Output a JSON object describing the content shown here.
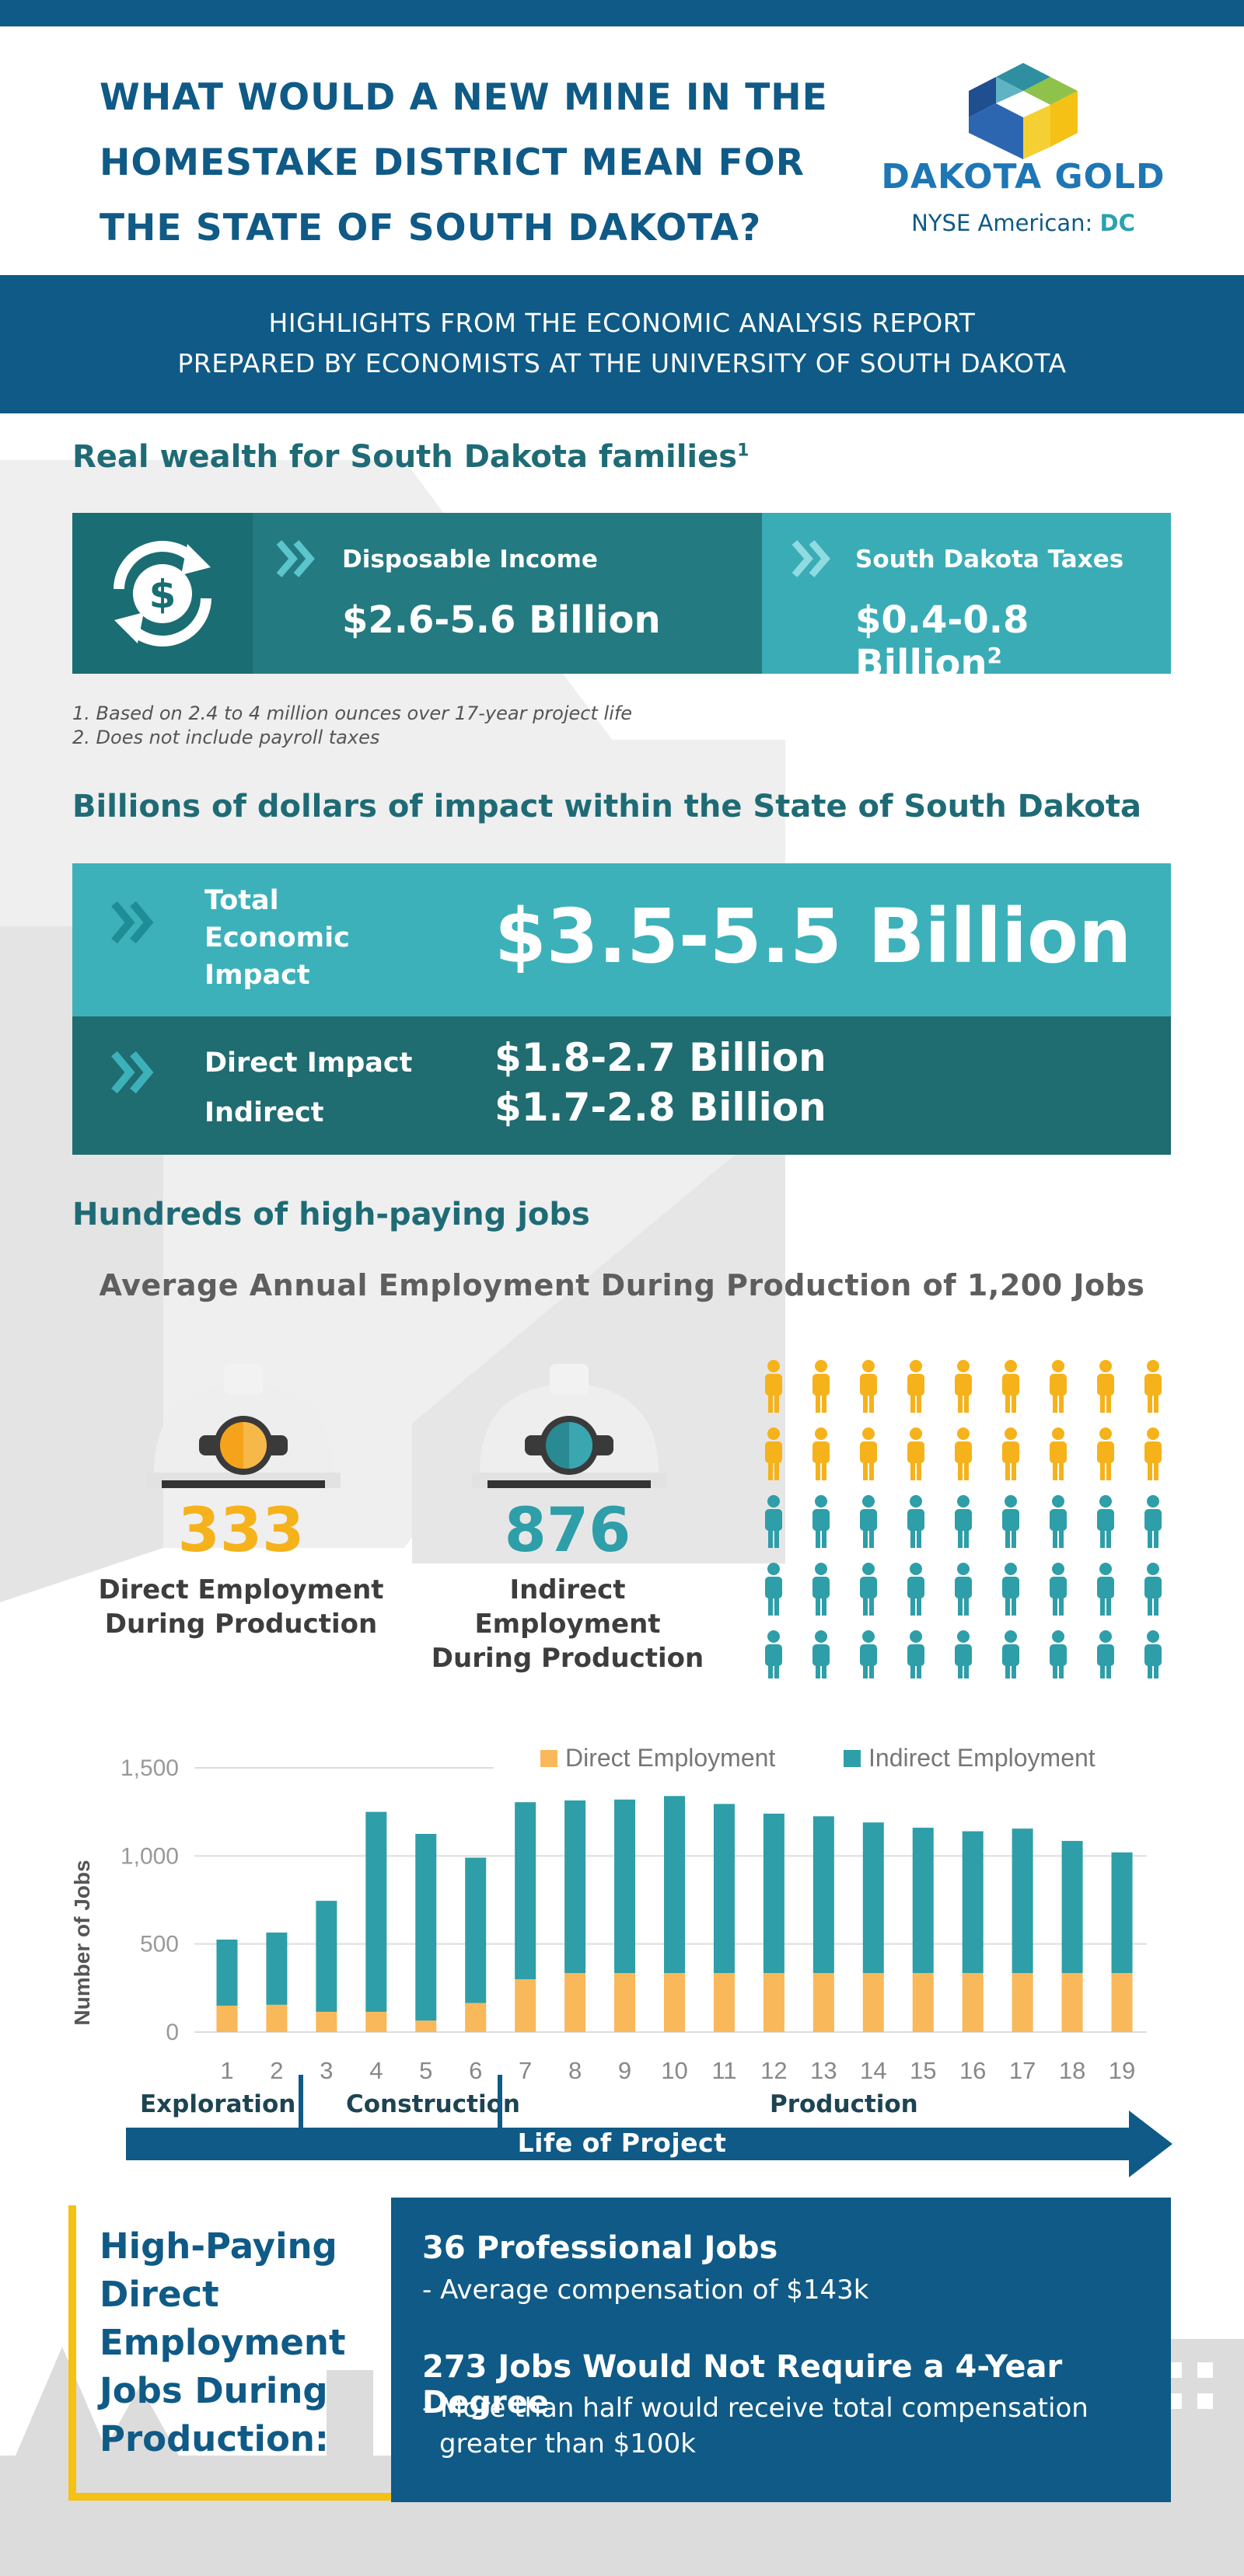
{
  "header": {
    "title_line1": "WHAT WOULD A NEW MINE IN THE",
    "title_line2": "HOMESTAKE DISTRICT MEAN FOR",
    "title_line3": "THE STATE OF SOUTH DAKOTA?",
    "logo_name": "DAKOTA GOLD",
    "ticker_prefix": "NYSE American:",
    "ticker_symbol": "DC"
  },
  "banner": {
    "line1": "HIGHLIGHTS FROM THE ECONOMIC ANALYSIS REPORT",
    "line2": "PREPARED BY ECONOMISTS AT THE UNIVERSITY OF SOUTH DAKOTA"
  },
  "wealth": {
    "title": "Real wealth for South Dakota families",
    "title_sup": "1",
    "income_label": "Disposable Income",
    "income_value": "$2.6-5.6 Billion",
    "taxes_label": "South Dakota Taxes",
    "taxes_value": "$0.4-0.8 Billion",
    "taxes_sup": "2",
    "icon": "dollar-cycle-icon",
    "footnote1": "1. Based on 2.4 to 4 million ounces over 17-year project life",
    "footnote2": "2. Does not include payroll taxes"
  },
  "impact": {
    "title": "Billions of dollars of impact within the State of South Dakota",
    "total_label_1": "Total",
    "total_label_2": "Economic",
    "total_label_3": "Impact",
    "total_value": "$3.5-5.5 Billion",
    "direct_label": "Direct Impact",
    "direct_value": "$1.8-2.7 Billion",
    "indirect_label": "Indirect",
    "indirect_value": "$1.7-2.8 Billion"
  },
  "jobs": {
    "title": "Hundreds of high-paying jobs",
    "subtitle": "Average Annual Employment During Production of 1,200 Jobs",
    "direct_count": "333",
    "direct_label_1": "Direct Employment",
    "direct_label_2": "During Production",
    "indirect_count": "876",
    "indirect_label_1": "Indirect Employment",
    "indirect_label_2": "During Production",
    "people_direct_rows": 2,
    "people_indirect_rows": 3,
    "people_per_row": 9
  },
  "colors": {
    "navy": "#0f5a86",
    "teal": "#2e9ea8",
    "teal_dark": "#1f6c71",
    "gold": "#f5b21b",
    "orange": "#f9b85a"
  },
  "chart_data": {
    "type": "bar",
    "stacked": true,
    "categories": [
      "1",
      "2",
      "3",
      "4",
      "5",
      "6",
      "7",
      "8",
      "9",
      "10",
      "11",
      "12",
      "13",
      "14",
      "15",
      "16",
      "17",
      "18",
      "19"
    ],
    "series": [
      {
        "name": "Direct Employment",
        "color": "#f9b85a",
        "values": [
          150,
          155,
          115,
          115,
          65,
          165,
          300,
          335,
          335,
          335,
          335,
          335,
          335,
          335,
          335,
          335,
          335,
          335,
          335
        ]
      },
      {
        "name": "Indirect Employment",
        "color": "#2e9ea8",
        "values": [
          375,
          410,
          630,
          1135,
          1060,
          825,
          1005,
          980,
          985,
          1005,
          960,
          905,
          890,
          855,
          825,
          805,
          820,
          750,
          685
        ]
      }
    ],
    "ylabel": "Number of Jobs",
    "ylim": [
      0,
      1500
    ],
    "yticks": [
      "0",
      "500",
      "1,000",
      "1,500"
    ],
    "legend_position": "top-right",
    "grid": true
  },
  "phases": {
    "exploration": "Exploration",
    "construction": "Construction",
    "production": "Production",
    "life": "Life of Project"
  },
  "highpaying": {
    "title_1": "High-Paying",
    "title_2": "Direct",
    "title_3": "Employment",
    "title_4": "Jobs During",
    "title_5": "Production:",
    "h1": "36 Professional Jobs",
    "p1": "- Average compensation of $143k",
    "h2": "273 Jobs Would Not Require a 4-Year Degree",
    "p2a": "- More than half would receive total compensation",
    "p2b": "greater than $100k"
  }
}
